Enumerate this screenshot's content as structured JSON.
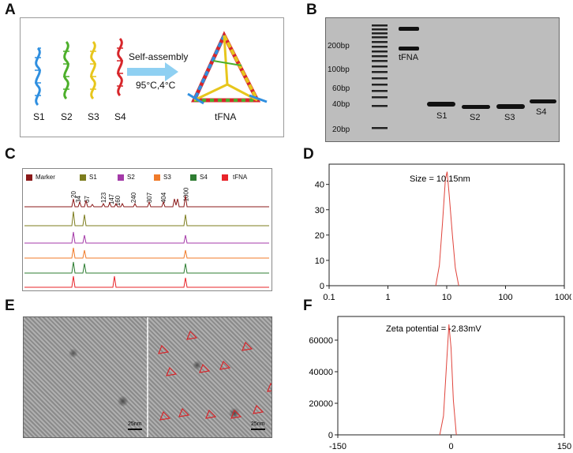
{
  "panels": {
    "A": {
      "label": "A",
      "strands": [
        "S1",
        "S2",
        "S3",
        "S4"
      ],
      "arrow_text": "Self-assembly",
      "condition": "95°C,4°C",
      "product": "tFNA",
      "colors": {
        "S1": "#2f8fe0",
        "S2": "#4caf2a",
        "S3": "#e7c61c",
        "S4": "#d7262b",
        "arrow": "#8fd0f2",
        "box_border": "#9a9a9a"
      }
    },
    "B": {
      "label": "B",
      "marker_labels": [
        "200bp",
        "100bp",
        "60bp",
        "40bp",
        "20bp"
      ],
      "lane_labels": [
        "tFNA",
        "S1",
        "S2",
        "S3",
        "S4"
      ],
      "gel_color": "#bdbdbd"
    },
    "C": {
      "label": "C",
      "legend": [
        {
          "name": "Marker",
          "color": "#8b1a1a"
        },
        {
          "name": "S1",
          "color": "#7d7d1e"
        },
        {
          "name": "S2",
          "color": "#a43aa8"
        },
        {
          "name": "S3",
          "color": "#f07b2a"
        },
        {
          "name": "S4",
          "color": "#2e7d32"
        },
        {
          "name": "tFNA",
          "color": "#e8242a"
        }
      ],
      "peak_labels": [
        "20",
        "34",
        "67",
        "123",
        "147",
        "160",
        "240",
        "307",
        "404",
        "1000"
      ]
    },
    "D": {
      "label": "D",
      "annotation": "Size  =  10.15nm"
    },
    "E": {
      "label": "E",
      "scale_bar_left": "25nm",
      "scale_bar_right": "25nm"
    },
    "F": {
      "label": "F",
      "annotation": "Zeta potential  =  -2.83mV"
    }
  },
  "chart_data": [
    {
      "panel": "D",
      "type": "line",
      "title": "Size  =  10.15nm",
      "xlabel": "",
      "ylabel": "",
      "xscale": "log",
      "xlim": [
        0.1,
        1000
      ],
      "ylim": [
        0,
        48
      ],
      "xticks": [
        "0.1",
        "1",
        "10",
        "100",
        "1000"
      ],
      "yticks": [
        0,
        10,
        20,
        30,
        40
      ],
      "line_color": "#e0443c",
      "series": [
        {
          "x": [
            6.5,
            7.5,
            8.5,
            9.5,
            10.15,
            11,
            12.5,
            14,
            16
          ],
          "y": [
            0,
            8,
            25,
            42,
            45,
            36,
            20,
            7,
            0
          ]
        }
      ]
    },
    {
      "panel": "F",
      "type": "line",
      "title": "Zeta potential  =  -2.83mV",
      "xlabel": "",
      "ylabel": "",
      "xlim": [
        -150,
        150
      ],
      "ylim": [
        0,
        75000
      ],
      "xticks": [
        "-150",
        "0",
        "150"
      ],
      "yticks": [
        0,
        20000,
        40000,
        60000
      ],
      "line_color": "#e0443c",
      "series": [
        {
          "x": [
            -15,
            -10,
            -6,
            -2.83,
            0,
            3,
            7
          ],
          "y": [
            0,
            12000,
            45000,
            70000,
            55000,
            22000,
            0
          ]
        }
      ]
    }
  ]
}
